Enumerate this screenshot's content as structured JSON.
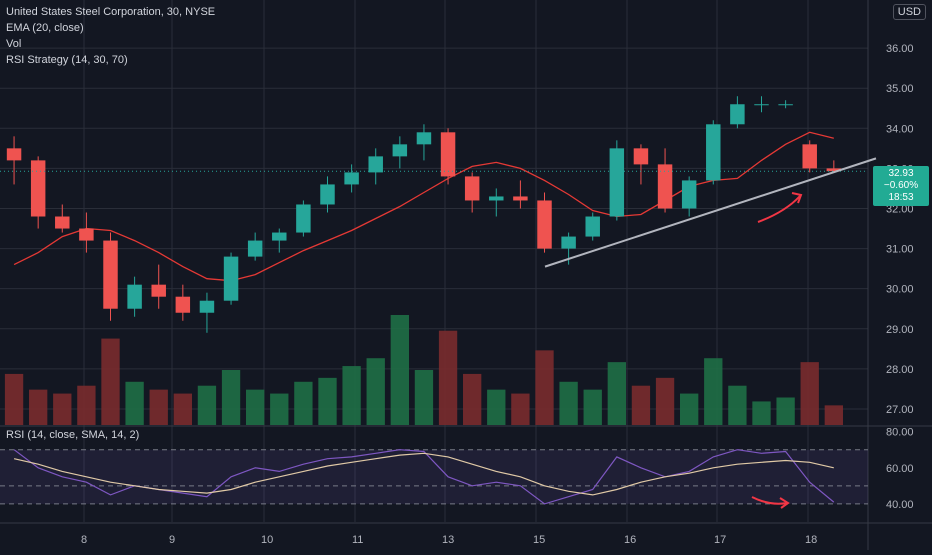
{
  "header": {
    "title": "United States Steel Corporation, 30, NYSE",
    "ema_label": "EMA (20, close)",
    "vol_label": "Vol",
    "strategy_label": "RSI Strategy (14, 30, 70)",
    "currency": "USD"
  },
  "rsi_header": {
    "label": "RSI (14, close, SMA, 14, 2)"
  },
  "last_price": {
    "price": "32.93",
    "change": "−0.60%",
    "countdown": "18:53"
  },
  "colors": {
    "up": "#26a69a",
    "down": "#ef5350",
    "ema": "#e53935",
    "trendline": "#b2b5be",
    "rsi": "#7e57c2",
    "rsi_ma": "#e0c9a6",
    "bg": "#131722",
    "grid": "#2a2e39"
  },
  "chart_data": [
    {
      "type": "candlestick",
      "title": "United States Steel Corporation, 30, NYSE",
      "y_ticks": [
        "27.00",
        "28.00",
        "29.00",
        "30.00",
        "31.00",
        "32.00",
        "33.00",
        "34.00",
        "35.00",
        "36.00"
      ],
      "x_ticks": [
        "8",
        "9",
        "10",
        "11",
        "13",
        "15",
        "16",
        "17",
        "18"
      ],
      "ylim": [
        26.6,
        37.2
      ],
      "series": [
        {
          "name": "EMA (20, close)",
          "values": [
            30.6,
            30.9,
            31.3,
            31.5,
            31.45,
            31.2,
            30.9,
            30.55,
            30.25,
            30.2,
            30.35,
            30.65,
            30.95,
            31.2,
            31.45,
            31.75,
            32.05,
            32.4,
            32.75,
            33.05,
            33.15,
            33.0,
            32.7,
            32.35,
            31.95,
            31.8,
            31.85,
            32.2,
            32.55,
            32.7,
            32.75,
            33.2,
            33.6,
            33.9,
            33.75
          ]
        }
      ],
      "candles_ohlc": [
        [
          33.5,
          33.8,
          32.6,
          33.2
        ],
        [
          33.2,
          33.3,
          31.5,
          31.8
        ],
        [
          31.8,
          32.1,
          31.4,
          31.5
        ],
        [
          31.5,
          31.9,
          30.9,
          31.2
        ],
        [
          31.2,
          31.4,
          29.2,
          29.5
        ],
        [
          29.5,
          30.3,
          29.3,
          30.1
        ],
        [
          30.1,
          30.6,
          29.5,
          29.8
        ],
        [
          29.8,
          30.1,
          29.2,
          29.4
        ],
        [
          29.4,
          29.9,
          28.9,
          29.7
        ],
        [
          29.7,
          30.9,
          29.6,
          30.8
        ],
        [
          30.8,
          31.4,
          30.7,
          31.2
        ],
        [
          31.2,
          31.5,
          30.9,
          31.4
        ],
        [
          31.4,
          32.2,
          31.3,
          32.1
        ],
        [
          32.1,
          32.8,
          31.9,
          32.6
        ],
        [
          32.6,
          33.1,
          32.4,
          32.9
        ],
        [
          32.9,
          33.5,
          32.6,
          33.3
        ],
        [
          33.3,
          33.8,
          33.0,
          33.6
        ],
        [
          33.6,
          34.1,
          33.2,
          33.9
        ],
        [
          33.9,
          34.0,
          32.6,
          32.8
        ],
        [
          32.8,
          32.9,
          31.9,
          32.2
        ],
        [
          32.2,
          32.5,
          31.8,
          32.3
        ],
        [
          32.3,
          32.7,
          32.0,
          32.2
        ],
        [
          32.2,
          32.4,
          30.9,
          31.0
        ],
        [
          31.0,
          31.4,
          30.6,
          31.3
        ],
        [
          31.3,
          31.9,
          31.2,
          31.8
        ],
        [
          31.8,
          33.7,
          31.7,
          33.5
        ],
        [
          33.5,
          33.6,
          32.6,
          33.1
        ],
        [
          33.1,
          33.5,
          31.9,
          32.0
        ],
        [
          32.0,
          32.8,
          31.8,
          32.7
        ],
        [
          32.7,
          34.2,
          32.6,
          34.1
        ],
        [
          34.1,
          34.8,
          34.0,
          34.6
        ],
        [
          34.6,
          34.8,
          34.4,
          34.6
        ],
        [
          34.6,
          34.7,
          34.5,
          34.6
        ],
        [
          33.6,
          33.7,
          32.9,
          33.0
        ],
        [
          33.0,
          33.2,
          32.9,
          32.93
        ]
      ],
      "volume": [
        1.3,
        0.9,
        0.8,
        1.0,
        2.2,
        1.1,
        0.9,
        0.8,
        1.0,
        1.4,
        0.9,
        0.8,
        1.1,
        1.2,
        1.5,
        1.7,
        2.8,
        1.4,
        2.4,
        1.3,
        0.9,
        0.8,
        1.9,
        1.1,
        0.9,
        1.6,
        1.0,
        1.2,
        0.8,
        1.7,
        1.0,
        0.6,
        0.7,
        1.6,
        0.5
      ],
      "trendline": {
        "from": [
          15.1,
          30.55
        ],
        "to": [
          18.6,
          33.25
        ]
      },
      "annotations": [
        "arrow-up-right"
      ]
    },
    {
      "type": "line",
      "title": "RSI (14, close, SMA, 14, 2)",
      "y_ticks": [
        "40.00",
        "60.00",
        "80.00"
      ],
      "ylim": [
        30,
        82
      ],
      "band": [
        40,
        70
      ],
      "midline": 50,
      "series": [
        {
          "name": "RSI",
          "values": [
            70,
            60,
            55,
            52,
            45,
            50,
            48,
            46,
            44,
            55,
            60,
            58,
            62,
            65,
            66,
            68,
            70,
            69,
            55,
            50,
            52,
            50,
            40,
            44,
            48,
            66,
            60,
            55,
            58,
            66,
            70,
            68,
            69,
            52,
            41
          ]
        },
        {
          "name": "SMA",
          "values": [
            65,
            62,
            58,
            55,
            52,
            50,
            48,
            47,
            46,
            48,
            52,
            55,
            58,
            61,
            63,
            65,
            67,
            68,
            66,
            62,
            58,
            55,
            50,
            47,
            45,
            48,
            52,
            55,
            57,
            60,
            62,
            63,
            64,
            63,
            60
          ]
        }
      ],
      "annotations": [
        "arrow-down-right"
      ]
    }
  ]
}
